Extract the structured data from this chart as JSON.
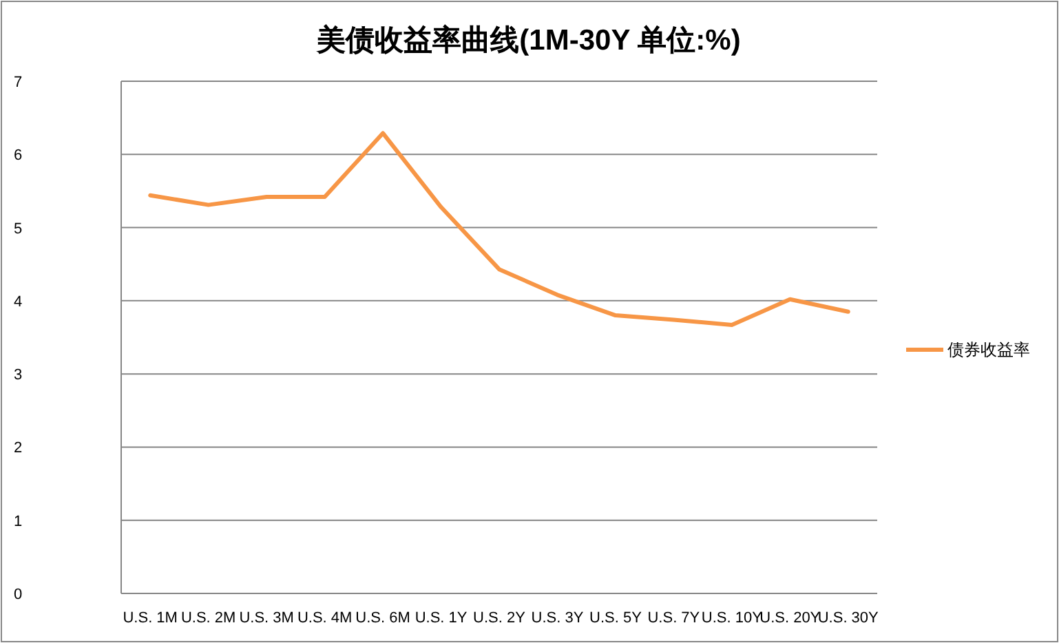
{
  "chart_data": {
    "type": "line",
    "title": "美债收益率曲线(1M-30Y 单位:%)",
    "categories": [
      "U.S. 1M",
      "U.S. 2M",
      "U.S. 3M",
      "U.S. 4M",
      "U.S. 6M",
      "U.S. 1Y",
      "U.S. 2Y",
      "U.S. 3Y",
      "U.S. 5Y",
      "U.S. 7Y",
      "U.S. 10Y",
      "U.S. 20Y",
      "U.S. 30Y"
    ],
    "series": [
      {
        "name": "债券收益率",
        "color": "#f79646",
        "values": [
          5.44,
          5.31,
          5.42,
          5.42,
          6.29,
          5.28,
          4.43,
          4.08,
          3.8,
          3.74,
          3.67,
          4.02,
          3.85
        ]
      }
    ],
    "ylim": [
      0,
      7
    ],
    "yticks": [
      0,
      1,
      2,
      3,
      4,
      5,
      6,
      7
    ],
    "grid": "y",
    "legend": "right",
    "marker": "none",
    "line_style": "solid"
  }
}
